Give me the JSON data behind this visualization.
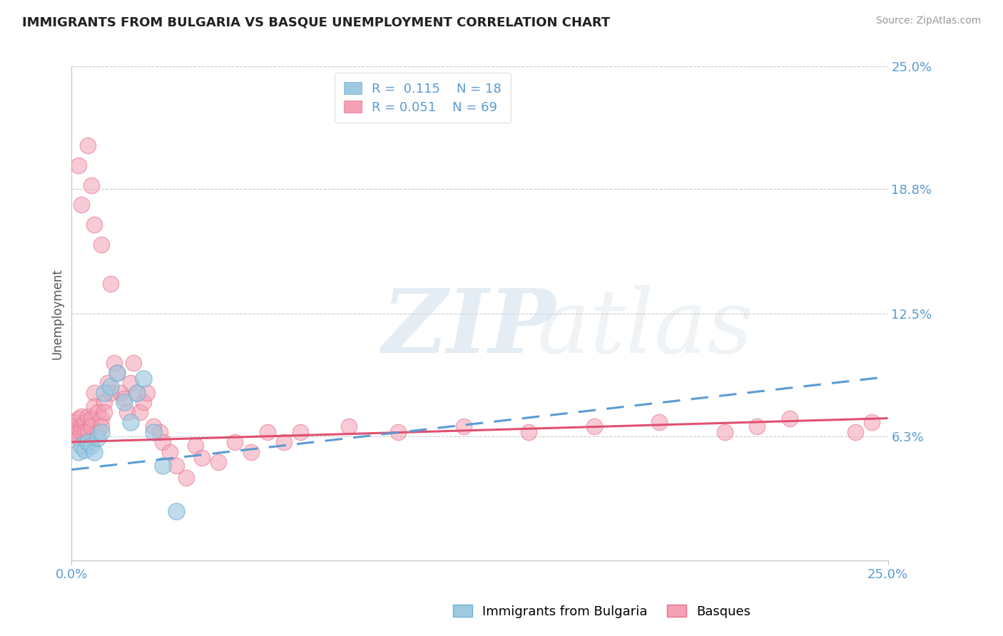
{
  "title": "IMMIGRANTS FROM BULGARIA VS BASQUE UNEMPLOYMENT CORRELATION CHART",
  "source": "Source: ZipAtlas.com",
  "ylabel": "Unemployment",
  "xlim": [
    0.0,
    0.25
  ],
  "ylim": [
    0.0,
    0.25
  ],
  "yticks": [
    0.063,
    0.125,
    0.188,
    0.25
  ],
  "ytick_labels": [
    "6.3%",
    "12.5%",
    "18.8%",
    "25.0%"
  ],
  "xtick_labels": [
    "0.0%",
    "25.0%"
  ],
  "bg_color": "#ffffff",
  "blue_color": "#9ecae1",
  "pink_color": "#f4a0b5",
  "blue_edge_color": "#6baed6",
  "pink_edge_color": "#e8728a",
  "blue_line_color": "#5b9bd5",
  "pink_line_color": "#e05070",
  "series_blue_x": [
    0.002,
    0.003,
    0.004,
    0.005,
    0.006,
    0.007,
    0.008,
    0.009,
    0.01,
    0.012,
    0.014,
    0.016,
    0.018,
    0.02,
    0.022,
    0.025,
    0.028,
    0.032
  ],
  "series_blue_y": [
    0.055,
    0.058,
    0.056,
    0.06,
    0.058,
    0.055,
    0.062,
    0.065,
    0.085,
    0.088,
    0.095,
    0.08,
    0.07,
    0.085,
    0.092,
    0.065,
    0.048,
    0.025
  ],
  "series_pink_x": [
    0.001,
    0.001,
    0.001,
    0.002,
    0.002,
    0.002,
    0.003,
    0.003,
    0.003,
    0.004,
    0.004,
    0.005,
    0.005,
    0.005,
    0.006,
    0.006,
    0.007,
    0.007,
    0.008,
    0.008,
    0.009,
    0.009,
    0.01,
    0.01,
    0.011,
    0.012,
    0.013,
    0.014,
    0.015,
    0.016,
    0.017,
    0.018,
    0.019,
    0.02,
    0.021,
    0.022,
    0.023,
    0.025,
    0.027,
    0.028,
    0.03,
    0.032,
    0.035,
    0.038,
    0.04,
    0.045,
    0.05,
    0.055,
    0.06,
    0.065,
    0.07,
    0.085,
    0.1,
    0.12,
    0.14,
    0.16,
    0.18,
    0.2,
    0.21,
    0.22,
    0.24,
    0.245,
    0.005,
    0.006,
    0.007,
    0.009,
    0.012,
    0.003,
    0.002
  ],
  "series_pink_y": [
    0.065,
    0.07,
    0.068,
    0.072,
    0.065,
    0.062,
    0.068,
    0.073,
    0.065,
    0.07,
    0.065,
    0.073,
    0.065,
    0.06,
    0.072,
    0.068,
    0.085,
    0.078,
    0.065,
    0.075,
    0.072,
    0.068,
    0.08,
    0.075,
    0.09,
    0.085,
    0.1,
    0.095,
    0.085,
    0.082,
    0.075,
    0.09,
    0.1,
    0.085,
    0.075,
    0.08,
    0.085,
    0.068,
    0.065,
    0.06,
    0.055,
    0.048,
    0.042,
    0.058,
    0.052,
    0.05,
    0.06,
    0.055,
    0.065,
    0.06,
    0.065,
    0.068,
    0.065,
    0.068,
    0.065,
    0.068,
    0.07,
    0.065,
    0.068,
    0.072,
    0.065,
    0.07,
    0.21,
    0.19,
    0.17,
    0.16,
    0.14,
    0.18,
    0.2
  ],
  "blue_trend_x": [
    0.0,
    0.25
  ],
  "blue_trend_y": [
    0.046,
    0.093
  ],
  "pink_trend_x": [
    0.0,
    0.25
  ],
  "pink_trend_y": [
    0.06,
    0.072
  ]
}
